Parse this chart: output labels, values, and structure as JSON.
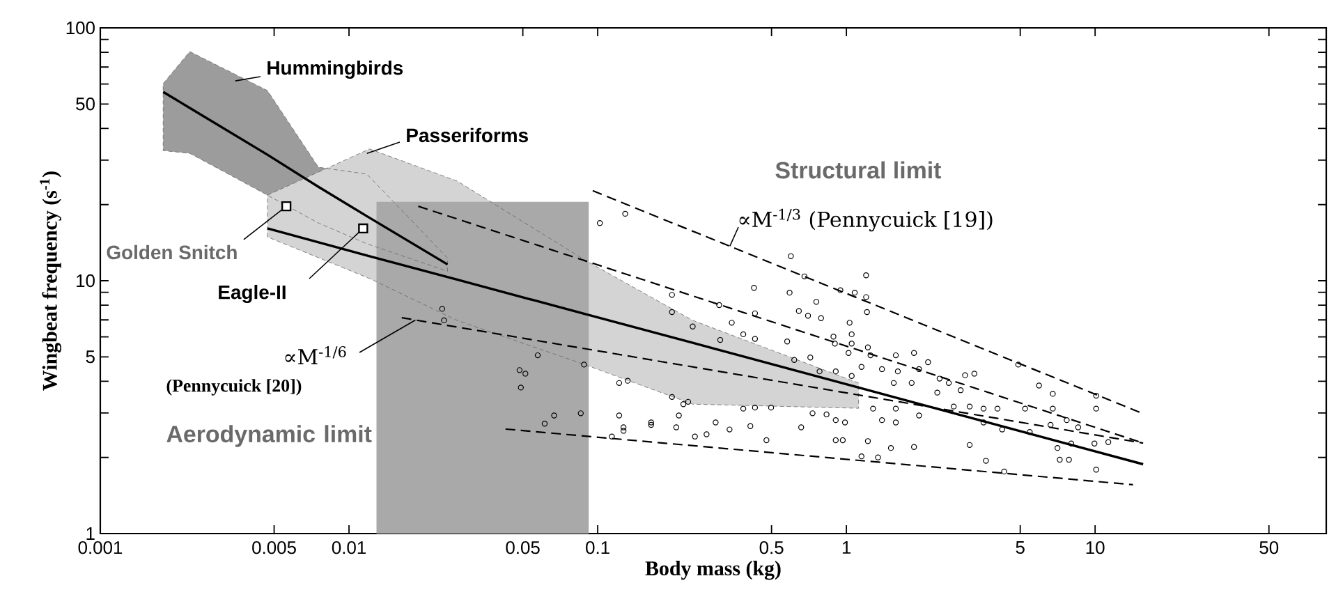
{
  "chart_data": {
    "type": "line",
    "xlabel": "Body mass (kg)",
    "ylabel": "Wingbeat frequency (s$^{-1}$)",
    "log": "xy",
    "xlim": [
      0.001,
      85
    ],
    "ylim": [
      1,
      100
    ],
    "xticks": [
      0.001,
      0.005,
      0.01,
      0.05,
      0.1,
      0.5,
      1,
      5,
      10,
      50
    ],
    "yticks": [
      1,
      {
        "value": 2,
        "label": null
      },
      {
        "value": 3,
        "label": null
      },
      {
        "value": 4,
        "label": null
      },
      5,
      {
        "value": 6,
        "label": null
      },
      {
        "value": 7,
        "label": null
      },
      {
        "value": 8,
        "label": null
      },
      {
        "value": 9,
        "label": null
      },
      10,
      {
        "value": 20,
        "label": null
      },
      {
        "value": 30,
        "label": null
      },
      {
        "value": 40,
        "label": null
      },
      50,
      {
        "value": 60,
        "label": null
      },
      {
        "value": 70,
        "label": null
      },
      {
        "value": 80,
        "label": null
      },
      {
        "value": 90,
        "label": null
      },
      100
    ],
    "series": [
      {
        "type": "area",
        "color": "#a9a9a9",
        "x": [
          0.0129,
          0.092
        ],
        "values": [
          20.5,
          20.5
        ]
      },
      {
        "color": "#000000",
        "line_style": "solid",
        "marker": "none",
        "x": [
          0.00179,
          0.00229,
          0.0047,
          0.00754,
          0.0118,
          0.0249
        ],
        "values": [
          55.8,
          48.2,
          31.5,
          23.5,
          18.0,
          11.6
        ],
        "lower": [
          32.7,
          31.9,
          21.8,
          16.9,
          14.0,
          10.9
        ],
        "upper": [
          60.2,
          80.6,
          56.5,
          28.1,
          26.4,
          12.3
        ]
      },
      {
        "color": "#000000",
        "line_style": "solid",
        "marker": "none",
        "x": [
          0.0047,
          0.0121,
          0.0272,
          0.0897,
          0.241,
          1.12,
          15.6
        ],
        "values": [
          16.1,
          12.5,
          10.1,
          7.37,
          5.68,
          3.78,
          1.88
        ],
        "lower": [
          14.9,
          10.2,
          6.97,
          4.64,
          3.25,
          3.13,
          null
        ],
        "upper": [
          21.8,
          33.2,
          24.8,
          12.0,
          6.97,
          3.94,
          null
        ]
      },
      {
        "color": "#000000",
        "line_style": "dashed",
        "marker": "none",
        "x": [
          0.0955,
          15.6
        ],
        "values": [
          22.7,
          2.98
        ]
      },
      {
        "color": "#000000",
        "line_style": "dashed",
        "marker": "none",
        "x": [
          0.0426,
          14.2
        ],
        "values": [
          2.59,
          1.56
        ]
      },
      {
        "color": "#000000",
        "line_style": "dashed",
        "marker": "none",
        "x": [
          0.0163,
          15.6
        ],
        "values": [
          7.14,
          2.28
        ]
      },
      {
        "color": "#000000",
        "line_style": "dashed",
        "marker": "none",
        "x": [
          0.019,
          15.6
        ],
        "values": [
          19.7,
          2.28
        ]
      },
      {
        "type": "scatter",
        "color": "#000000",
        "marker": "circle",
        "x": [
          0.102,
          0.129,
          0.0237,
          0.0241,
          0.0574,
          0.0485,
          0.0512,
          0.0491,
          0.0881,
          0.122,
          0.132,
          0.122,
          0.0668,
          0.0612,
          0.0855,
          0.164,
          0.114,
          0.127,
          0.598,
          0.678,
          1.2,
          0.425,
          0.591,
          0.946,
          1.08,
          1.2,
          1.21,
          0.199,
          0.199,
          0.308,
          0.429,
          0.241,
          0.311,
          0.346,
          0.385,
          0.429,
          0.578,
          0.644,
          0.701,
          0.757,
          0.791,
          1.03,
          1.05,
          1.05,
          1.02,
          1.22,
          0.887,
          0.899,
          0.617,
          0.716,
          0.78,
          0.906,
          1.05,
          1.25,
          1.15,
          1.39,
          1.58,
          1.87,
          2.13,
          1.96,
          1.61,
          1.55,
          1.83,
          2.37,
          2.58,
          3.0,
          3.27,
          2.32,
          2.88,
          2.7,
          3.13,
          3.56,
          4.05,
          3.56,
          4.23,
          5.23,
          5.95,
          6.76,
          4.91,
          6.76,
          7.69,
          5.46,
          6.62,
          8.55,
          10.1,
          10.1,
          11.3,
          7.06,
          8.02,
          7.21,
          7.85,
          9.94,
          10.1,
          4.31,
          3.64,
          3.13,
          1.87,
          1.51,
          1.34,
          1.15,
          1.22,
          0.906,
          0.967,
          0.731,
          0.832,
          0.906,
          1.28,
          1.39,
          1.58,
          1.58,
          1.96,
          0.987,
          0.658,
          0.477,
          0.411,
          0.339,
          0.298,
          0.274,
          0.246,
          0.207,
          0.212,
          0.221,
          0.231,
          0.199,
          0.164,
          0.127,
          0.385,
          0.429,
          0.498
        ],
        "values": [
          16.9,
          18.4,
          7.74,
          6.97,
          5.07,
          4.43,
          4.29,
          3.78,
          4.66,
          3.94,
          4.02,
          2.93,
          2.93,
          2.72,
          2.99,
          2.69,
          2.42,
          2.55,
          12.5,
          10.4,
          10.5,
          9.37,
          8.97,
          9.17,
          8.97,
          8.61,
          7.52,
          8.79,
          7.52,
          8.01,
          7.43,
          6.59,
          5.83,
          6.82,
          6.14,
          5.89,
          5.75,
          7.59,
          7.27,
          8.25,
          7.11,
          6.82,
          6.14,
          5.64,
          5.18,
          5.45,
          6.01,
          5.64,
          4.86,
          4.97,
          4.38,
          4.38,
          4.2,
          5.07,
          4.56,
          4.47,
          5.07,
          5.18,
          4.76,
          4.47,
          4.38,
          3.94,
          3.94,
          4.1,
          3.94,
          4.23,
          4.29,
          3.61,
          3.69,
          3.18,
          3.18,
          3.12,
          3.12,
          2.75,
          2.58,
          3.12,
          3.85,
          3.57,
          4.66,
          3.12,
          2.81,
          2.52,
          2.69,
          2.63,
          3.51,
          3.12,
          2.3,
          2.18,
          2.27,
          1.96,
          1.96,
          2.27,
          1.79,
          1.76,
          1.94,
          2.24,
          2.2,
          2.18,
          2.0,
          2.02,
          2.32,
          2.34,
          2.34,
          2.99,
          2.96,
          2.81,
          3.12,
          2.81,
          3.12,
          2.75,
          2.93,
          2.75,
          2.63,
          2.34,
          2.66,
          2.58,
          2.75,
          2.47,
          2.42,
          2.63,
          2.93,
          3.25,
          3.32,
          3.47,
          2.75,
          2.63,
          3.12,
          3.15,
          3.15
        ]
      },
      {
        "type": "scatter",
        "color": "#000000",
        "marker": "square",
        "x": [
          0.0056,
          0.0114
        ],
        "values": [
          19.7,
          16.1
        ]
      }
    ],
    "annotations": [
      {
        "text": "Hummingbirds",
        "x": 0.00349,
        "y": 61.7
      },
      {
        "text": "Passeriforms",
        "x": 0.0118,
        "y": 31.9
      },
      {
        "text": "Golden Snitch",
        "x": 0.0056,
        "y": 19.7
      },
      {
        "text": "Eagle-II",
        "x": 0.0114,
        "y": 16.1
      },
      "Structural limit",
      {
        "text": "∝M$^{-1/3}$ (Pennycuick [19])",
        "x": 0.34,
        "y": 13.7
      },
      {
        "text": "∝M$^{-1/6}$",
        "x": 0.0185,
        "y": 6.99
      },
      "(Pennycuick [20])",
      "Aerodynamic limit"
    ]
  }
}
